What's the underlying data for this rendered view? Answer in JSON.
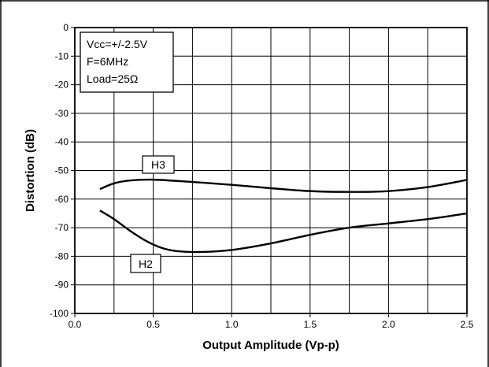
{
  "chart_data": {
    "type": "line",
    "title": "",
    "xlabel": "Output Amplitude (Vp-p)",
    "ylabel": "Distortion  (dB)",
    "xlim": [
      0.0,
      2.5
    ],
    "ylim": [
      -100,
      0
    ],
    "x_ticks": [
      "0.0",
      "0.5",
      "1.0",
      "1.5",
      "2.0",
      "2.5"
    ],
    "y_ticks": [
      "0",
      "-10",
      "-20",
      "-30",
      "-40",
      "-50",
      "-60",
      "-70",
      "-80",
      "-90",
      "-100"
    ],
    "grid": true,
    "conditions": [
      "Vcc=+/-2.5V",
      "F=6MHz",
      "Load=25Ω"
    ],
    "series": [
      {
        "name": "H3",
        "x": [
          0.16,
          0.25,
          0.35,
          0.5,
          0.75,
          1.0,
          1.25,
          1.5,
          1.75,
          2.0,
          2.25,
          2.5
        ],
        "y": [
          -56.5,
          -54.5,
          -53.5,
          -53.2,
          -54.0,
          -55.0,
          -56.2,
          -57.2,
          -57.5,
          -57.2,
          -55.8,
          -53.3
        ]
      },
      {
        "name": "H2",
        "x": [
          0.16,
          0.25,
          0.35,
          0.45,
          0.55,
          0.65,
          0.8,
          1.0,
          1.25,
          1.5,
          1.75,
          2.0,
          2.25,
          2.5
        ],
        "y": [
          -64.0,
          -67.0,
          -71.0,
          -74.5,
          -77.0,
          -78.2,
          -78.5,
          -77.8,
          -75.5,
          -72.5,
          -70.0,
          -68.5,
          -67.0,
          -65.0
        ]
      }
    ],
    "colors": {
      "line": "#000000",
      "grid": "#000000",
      "background": "#ffffff"
    }
  }
}
